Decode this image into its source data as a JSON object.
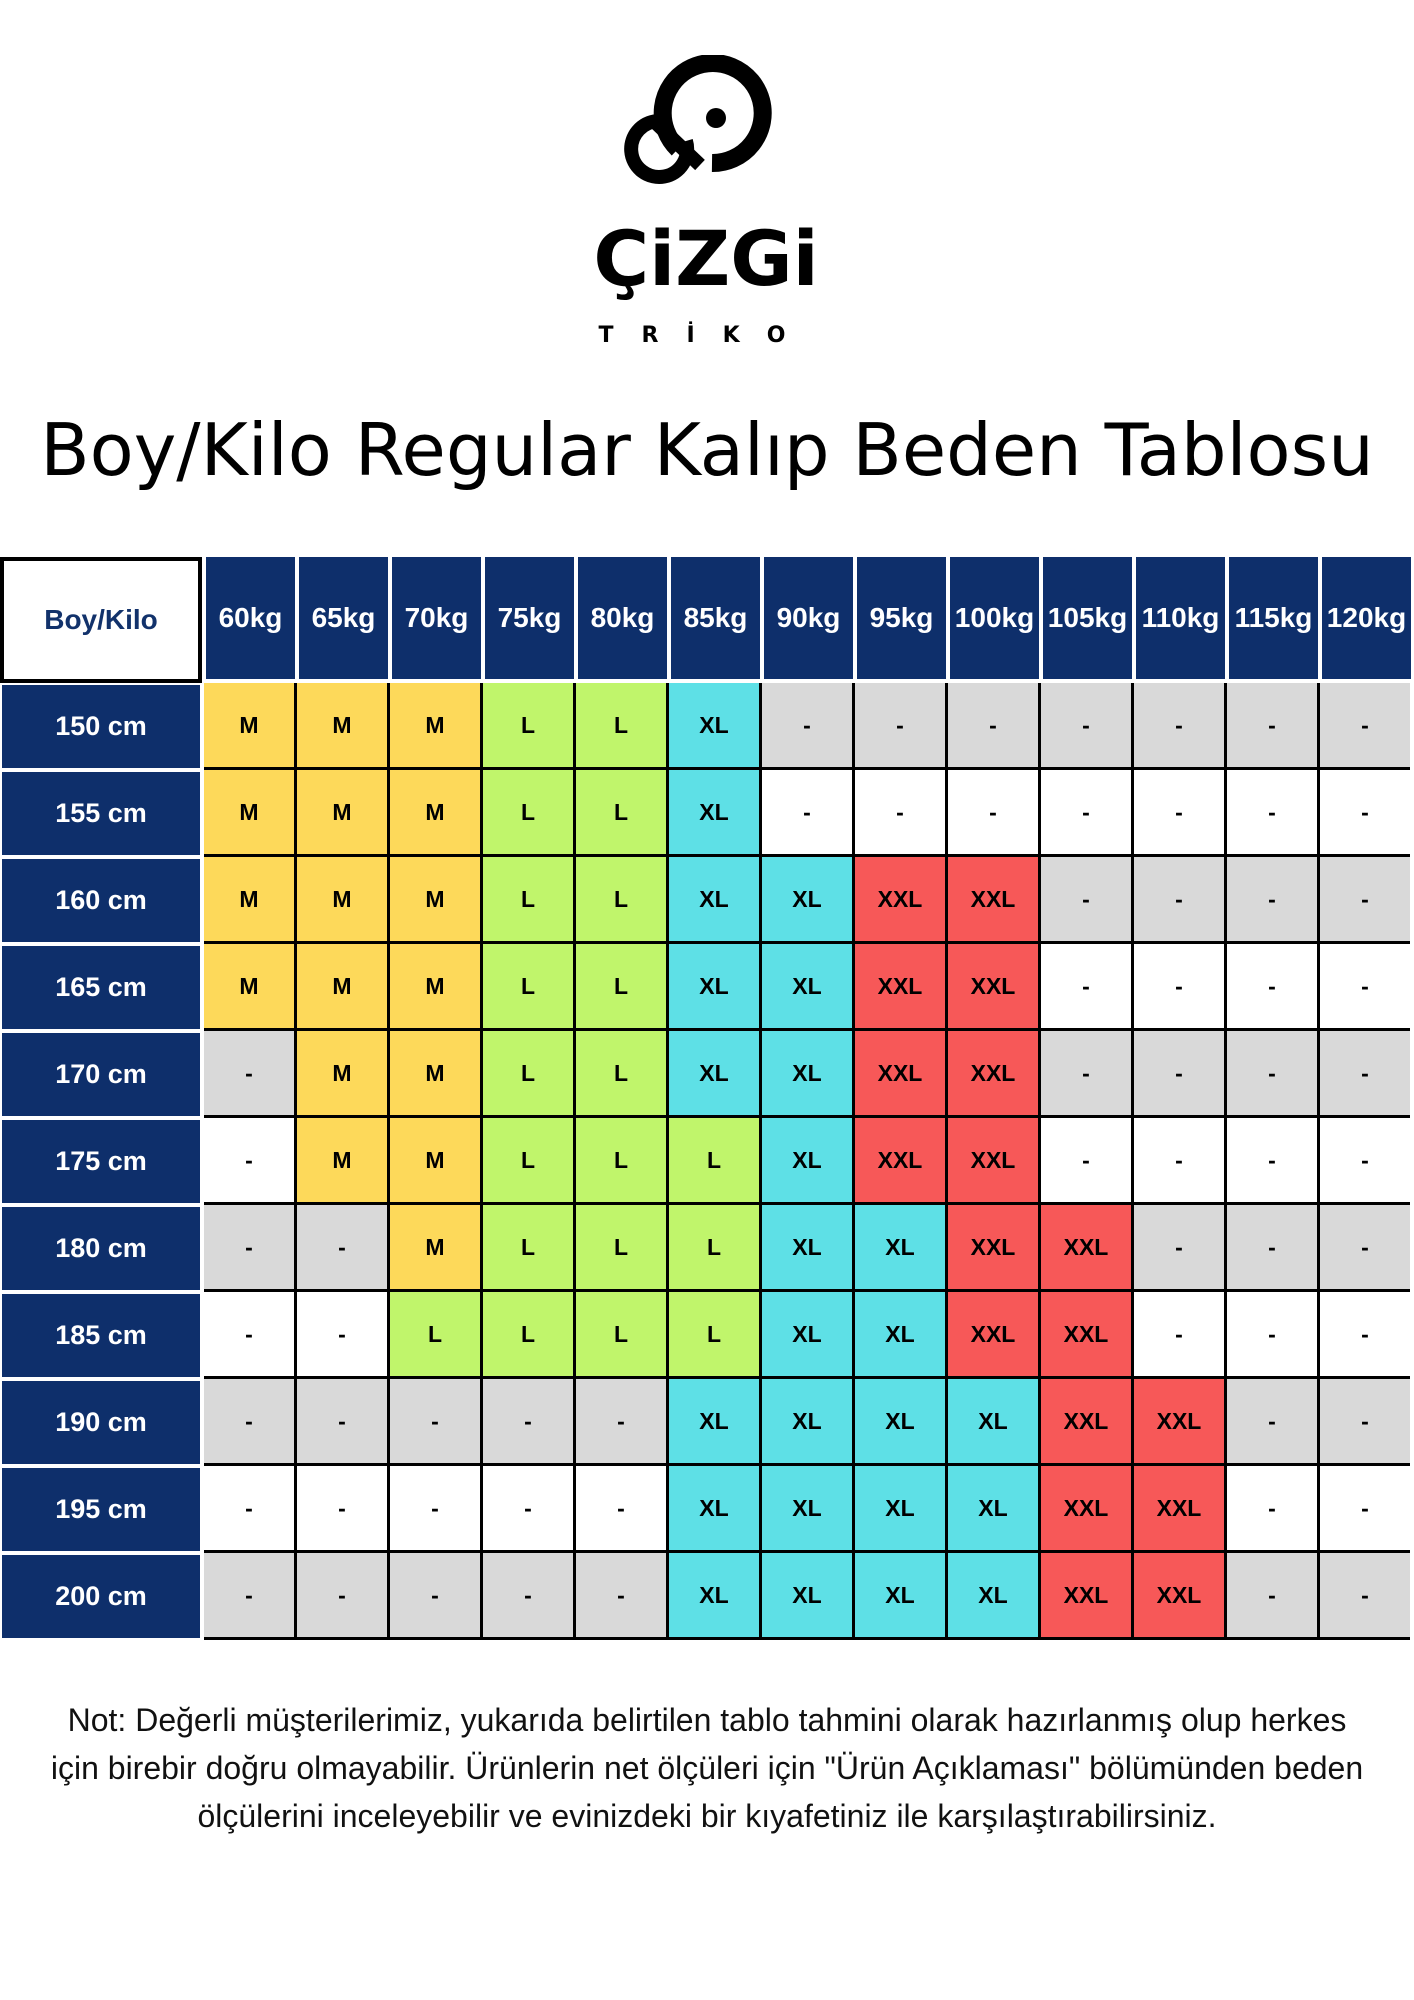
{
  "brand": {
    "name": "ÇiZGi",
    "sub": "TRİKO"
  },
  "title": "Boy/Kilo Regular Kalıp Beden Tablosu",
  "table": {
    "corner": "Boy/Kilo",
    "weights": [
      "60",
      "65",
      "70",
      "75",
      "80",
      "85",
      "90",
      "95",
      "100",
      "105",
      "110",
      "115",
      "120"
    ],
    "weight_unit": "kg",
    "colors": {
      "M": "#fdd95a",
      "L": "#c0f56b",
      "XL": "#5ee0e6",
      "XXL": "#f75858",
      "gray": "#d9d9d9",
      "white": "#ffffff"
    },
    "rows": [
      {
        "height": "150 cm",
        "sizes": [
          "M",
          "M",
          "M",
          "L",
          "L",
          "XL",
          "-",
          "-",
          "-",
          "-",
          "-",
          "-",
          "-"
        ]
      },
      {
        "height": "155 cm",
        "sizes": [
          "M",
          "M",
          "M",
          "L",
          "L",
          "XL",
          "-",
          "-",
          "-",
          "-",
          "-",
          "-",
          "-"
        ]
      },
      {
        "height": "160 cm",
        "sizes": [
          "M",
          "M",
          "M",
          "L",
          "L",
          "XL",
          "XL",
          "XXL",
          "XXL",
          "-",
          "-",
          "-",
          "-"
        ]
      },
      {
        "height": "165 cm",
        "sizes": [
          "M",
          "M",
          "M",
          "L",
          "L",
          "XL",
          "XL",
          "XXL",
          "XXL",
          "-",
          "-",
          "-",
          "-"
        ]
      },
      {
        "height": "170 cm",
        "sizes": [
          "-",
          "M",
          "M",
          "L",
          "L",
          "XL",
          "XL",
          "XXL",
          "XXL",
          "-",
          "-",
          "-",
          "-"
        ]
      },
      {
        "height": "175 cm",
        "sizes": [
          "-",
          "M",
          "M",
          "L",
          "L",
          "L",
          "XL",
          "XXL",
          "XXL",
          "-",
          "-",
          "-",
          "-"
        ]
      },
      {
        "height": "180 cm",
        "sizes": [
          "-",
          "-",
          "M",
          "L",
          "L",
          "L",
          "XL",
          "XL",
          "XXL",
          "XXL",
          "-",
          "-",
          "-"
        ]
      },
      {
        "height": "185 cm",
        "sizes": [
          "-",
          "-",
          "L",
          "L",
          "L",
          "L",
          "XL",
          "XL",
          "XXL",
          "XXL",
          "-",
          "-",
          "-"
        ]
      },
      {
        "height": "190 cm",
        "sizes": [
          "-",
          "-",
          "-",
          "-",
          "-",
          "XL",
          "XL",
          "XL",
          "XL",
          "XXL",
          "XXL",
          "-",
          "-"
        ]
      },
      {
        "height": "195 cm",
        "sizes": [
          "-",
          "-",
          "-",
          "-",
          "-",
          "XL",
          "XL",
          "XL",
          "XL",
          "XXL",
          "XXL",
          "-",
          "-"
        ]
      },
      {
        "height": "200 cm",
        "sizes": [
          "-",
          "-",
          "-",
          "-",
          "-",
          "XL",
          "XL",
          "XL",
          "XL",
          "XXL",
          "XXL",
          "-",
          "-"
        ]
      }
    ]
  },
  "note": "Not: Değerli müşterilerimiz, yukarıda belirtilen tablo tahmini olarak hazırlanmış olup herkes için birebir doğru olmayabilir. Ürünlerin net ölçüleri için \"Ürün Açıklaması\" bölümünden beden ölçülerini inceleyebilir ve evinizdeki bir kıyafetiniz ile karşılaştırabilirsiniz."
}
